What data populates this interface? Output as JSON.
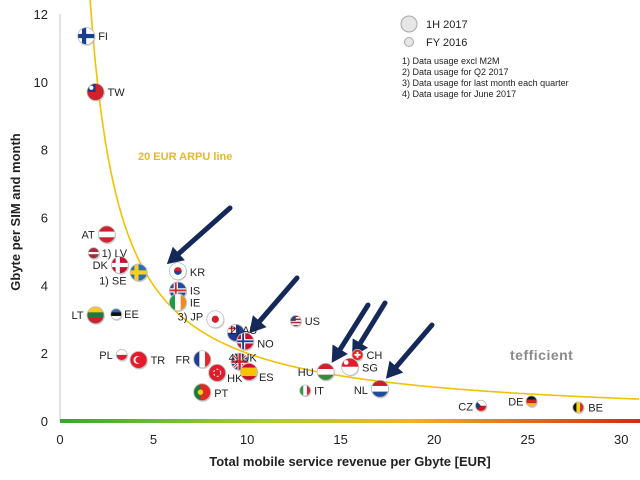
{
  "chart_data": {
    "type": "scatter",
    "title": "",
    "xlabel": "Total mobile service revenue per Gbyte [EUR]",
    "ylabel": "Gbyte per SIM and month",
    "xlim": [
      0,
      31
    ],
    "ylim": [
      0,
      12
    ],
    "x_ticks": [
      0,
      5,
      10,
      15,
      20,
      25,
      30
    ],
    "y_ticks": [
      0,
      2,
      4,
      6,
      8,
      10,
      12
    ],
    "grid": false,
    "legend": {
      "placement": "top-right",
      "entries": [
        {
          "label": "1H 2017",
          "size": "large"
        },
        {
          "label": "FY 2016",
          "size": "small"
        }
      ]
    },
    "notes": [
      "1) Data usage excl M2M",
      "2) Data usage for Q2 2017",
      "3) Data usage for last month each quarter",
      "4) Data usage for June 2017"
    ],
    "curve": {
      "label": "20 EUR ARPU line",
      "arpu_eur": 20,
      "color": "#f2c200"
    },
    "arrows_point_to": [
      "KR",
      "NO",
      "HU",
      "SG",
      "NL"
    ],
    "brand": "tefficient",
    "points": [
      {
        "label": "FI",
        "x": 1.4,
        "y": 11.35,
        "size": "large",
        "flag": "FI"
      },
      {
        "label": "TW",
        "x": 1.9,
        "y": 9.7,
        "size": "large",
        "flag": "TW"
      },
      {
        "label": "AT",
        "x": 2.5,
        "y": 5.5,
        "size": "large",
        "flag": "AT"
      },
      {
        "label": "1) LV",
        "x": 1.8,
        "y": 4.95,
        "size": "small",
        "flag": "LV"
      },
      {
        "label": "DK",
        "x": 3.2,
        "y": 4.6,
        "size": "large",
        "flag": "DK"
      },
      {
        "label": "1) SE",
        "x": 4.2,
        "y": 4.38,
        "size": "large",
        "flag": "SE"
      },
      {
        "label": "KR",
        "x": 6.3,
        "y": 4.42,
        "size": "large",
        "flag": "KR"
      },
      {
        "label": "IS",
        "x": 6.3,
        "y": 3.85,
        "size": "large",
        "flag": "IS"
      },
      {
        "label": "IE",
        "x": 6.3,
        "y": 3.5,
        "size": "large",
        "flag": "IE"
      },
      {
        "label": "LT",
        "x": 1.9,
        "y": 3.12,
        "size": "large",
        "flag": "LT"
      },
      {
        "label": "EE",
        "x": 3.0,
        "y": 3.15,
        "size": "small",
        "flag": "EE"
      },
      {
        "label": "3) JP",
        "x": 8.3,
        "y": 3.0,
        "size": "large",
        "flag": "JP"
      },
      {
        "label": "2) AU",
        "x": 9.4,
        "y": 2.6,
        "size": "large",
        "flag": "AU"
      },
      {
        "label": "NO",
        "x": 9.9,
        "y": 2.35,
        "size": "large",
        "flag": "NO"
      },
      {
        "label": "US",
        "x": 12.6,
        "y": 2.95,
        "size": "small",
        "flag": "US"
      },
      {
        "label": "PL",
        "x": 3.3,
        "y": 1.95,
        "size": "small",
        "flag": "PL"
      },
      {
        "label": "TR",
        "x": 4.2,
        "y": 1.8,
        "size": "large",
        "flag": "TR"
      },
      {
        "label": "FR",
        "x": 7.6,
        "y": 1.82,
        "size": "large",
        "flag": "FR"
      },
      {
        "label": "4) UK",
        "x": 9.6,
        "y": 1.75,
        "size": "large",
        "flag": "UK"
      },
      {
        "label": "HK",
        "x": 8.4,
        "y": 1.42,
        "size": "large",
        "flag": "HK"
      },
      {
        "label": "ES",
        "x": 10.1,
        "y": 1.45,
        "size": "large",
        "flag": "ES"
      },
      {
        "label": "PT",
        "x": 7.6,
        "y": 0.85,
        "size": "large",
        "flag": "PT"
      },
      {
        "label": "IT",
        "x": 13.1,
        "y": 0.9,
        "size": "small",
        "flag": "IT"
      },
      {
        "label": "HU",
        "x": 14.2,
        "y": 1.45,
        "size": "large",
        "flag": "HU"
      },
      {
        "label": "CH",
        "x": 15.9,
        "y": 1.95,
        "size": "small",
        "flag": "CH"
      },
      {
        "label": "SG",
        "x": 15.5,
        "y": 1.6,
        "size": "large",
        "flag": "SG"
      },
      {
        "label": "NL",
        "x": 17.1,
        "y": 0.95,
        "size": "large",
        "flag": "NL"
      },
      {
        "label": "CZ",
        "x": 22.5,
        "y": 0.45,
        "size": "small",
        "flag": "CZ"
      },
      {
        "label": "DE",
        "x": 25.2,
        "y": 0.58,
        "size": "small",
        "flag": "DE"
      },
      {
        "label": "BE",
        "x": 27.7,
        "y": 0.4,
        "size": "small",
        "flag": "BE"
      }
    ]
  }
}
